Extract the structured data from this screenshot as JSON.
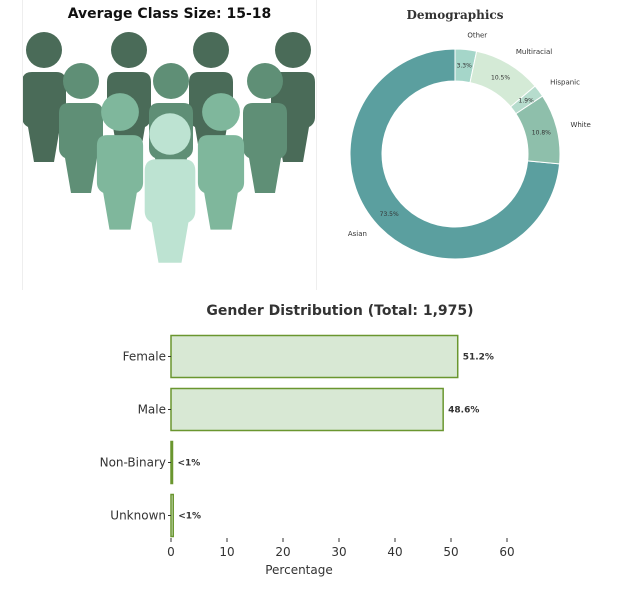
{
  "class_size": {
    "title": "Average Class Size: 15-18",
    "figure_colors": [
      "#4a6b58",
      "#5f8f76",
      "#7fb79c",
      "#bde3d2"
    ]
  },
  "chart_data": [
    {
      "type": "pie",
      "title": "Demographics",
      "donut": true,
      "slices": [
        {
          "label": "Asian",
          "value": 73.5,
          "pct_label": "73.5%",
          "color": "#5b9f9f"
        },
        {
          "label": "Other",
          "value": 3.3,
          "pct_label": "3.3%",
          "color": "#a5d6c9"
        },
        {
          "label": "Multiracial",
          "value": 10.5,
          "pct_label": "10.5%",
          "color": "#d4ead6"
        },
        {
          "label": "Hispanic",
          "value": 1.9,
          "pct_label": "1.9%",
          "color": "#b6dccd"
        },
        {
          "label": "White",
          "value": 10.8,
          "pct_label": "10.8%",
          "color": "#8ebfab"
        }
      ]
    },
    {
      "type": "bar",
      "orientation": "horizontal",
      "title": "Gender Distribution (Total: 1,975)",
      "categories": [
        "Female",
        "Male",
        "Non-Binary",
        "Unknown"
      ],
      "values": [
        51.2,
        48.6,
        0.2,
        0.4
      ],
      "value_labels": [
        "51.2%",
        "48.6%",
        "<1%",
        "<1%"
      ],
      "xlabel": "Percentage",
      "ylabel": "",
      "xlim": [
        0,
        60
      ],
      "xticks": [
        0,
        10,
        20,
        30,
        40,
        50,
        60
      ],
      "bar_fill": "#d8e8d4",
      "bar_edge": "#6a962f"
    }
  ]
}
